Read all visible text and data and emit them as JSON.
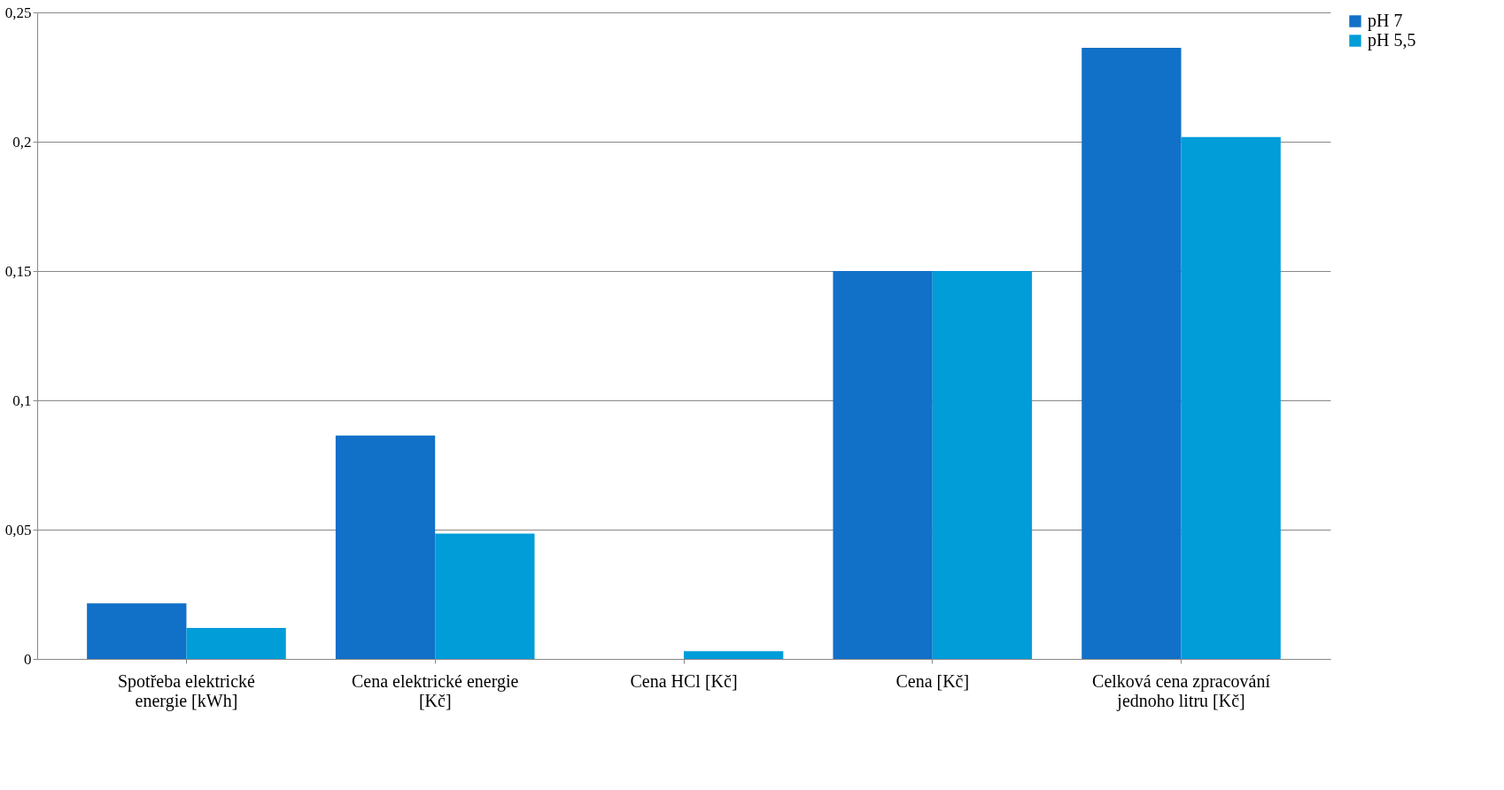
{
  "chart_data": {
    "type": "bar",
    "categories": [
      "Spotřeba elektrické energie [kWh]",
      "Cena elektrické energie [Kč]",
      "Cena HCl [Kč]",
      "Cena [Kč]",
      "Celková cena zpracování jednoho litru [Kč]"
    ],
    "series": [
      {
        "name": "pH 7",
        "color": "#1170c8",
        "values": [
          0.0215,
          0.0864,
          0,
          0.15,
          0.2363
        ]
      },
      {
        "name": "pH 5,5",
        "color": "#009dd9",
        "values": [
          0.012,
          0.0485,
          0.003,
          0.15,
          0.2018
        ]
      }
    ],
    "ylim": [
      0,
      0.25
    ],
    "yticks": [
      {
        "value": 0,
        "label": "0"
      },
      {
        "value": 0.05,
        "label": "0,05"
      },
      {
        "value": 0.1,
        "label": "0,1"
      },
      {
        "value": 0.15,
        "label": "0,15"
      },
      {
        "value": 0.2,
        "label": "0,2"
      },
      {
        "value": 0.25,
        "label": "0,25"
      }
    ],
    "grid": "y",
    "legend": "right"
  }
}
